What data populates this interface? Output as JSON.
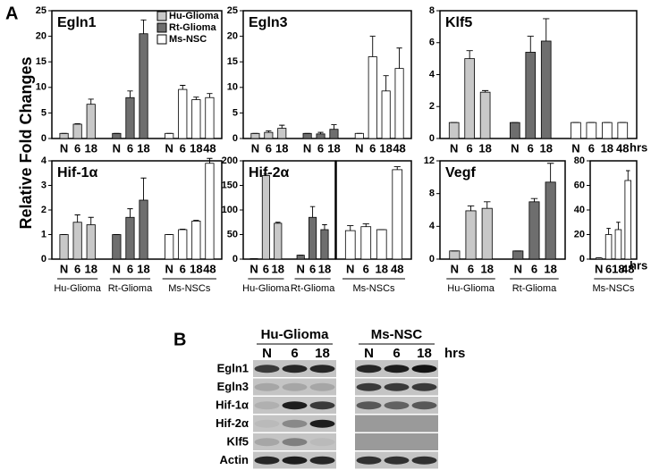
{
  "panel_a_label": "A",
  "y_axis_label": "Relative Fold Changes",
  "x_unit": "hrs",
  "chart_data": [
    {
      "type": "bar",
      "title": "Egln1",
      "ylim": [
        0,
        25
      ],
      "yticks": [
        0,
        5,
        10,
        15,
        20,
        25
      ],
      "legend": [
        {
          "name": "Hu-Glioma",
          "color": "#c8c8c8"
        },
        {
          "name": "Rt-Glioma",
          "color": "#6e6e6e"
        },
        {
          "name": "Ms-NSC",
          "color": "#ffffff"
        }
      ],
      "series": [
        {
          "color": "#c8c8c8",
          "categories": [
            "N",
            "6",
            "18"
          ],
          "values": [
            1,
            2.8,
            6.7
          ],
          "errors": [
            0,
            0.1,
            1
          ]
        },
        {
          "color": "#6e6e6e",
          "categories": [
            "N",
            "6",
            "18"
          ],
          "values": [
            1,
            8,
            20.5
          ],
          "errors": [
            0,
            1.3,
            2.7
          ]
        },
        {
          "color": "#ffffff",
          "categories": [
            "N",
            "6",
            "18",
            "48"
          ],
          "values": [
            1,
            9.6,
            7.6,
            8
          ],
          "errors": [
            0,
            0.8,
            0.5,
            0.8
          ]
        }
      ]
    },
    {
      "type": "bar",
      "title": "Egln3",
      "ylim": [
        0,
        25
      ],
      "yticks": [
        0,
        5,
        10,
        15,
        20,
        25
      ],
      "series": [
        {
          "color": "#c8c8c8",
          "categories": [
            "N",
            "6",
            "18"
          ],
          "values": [
            1,
            1.2,
            2
          ],
          "errors": [
            0,
            0.3,
            0.6
          ]
        },
        {
          "color": "#6e6e6e",
          "categories": [
            "N",
            "6",
            "18"
          ],
          "values": [
            1,
            0.9,
            1.8
          ],
          "errors": [
            0,
            0.3,
            0.9
          ]
        },
        {
          "color": "#ffffff",
          "categories": [
            "N",
            "6",
            "18",
            "48"
          ],
          "values": [
            1,
            16,
            9.3,
            13.7
          ],
          "errors": [
            0,
            4,
            3,
            4
          ]
        }
      ]
    },
    {
      "type": "bar",
      "title": "Klf5",
      "ylim": [
        0,
        8
      ],
      "yticks": [
        0,
        2,
        4,
        6,
        8
      ],
      "series": [
        {
          "color": "#c8c8c8",
          "categories": [
            "N",
            "6",
            "18"
          ],
          "values": [
            1,
            5,
            2.9
          ],
          "errors": [
            0,
            0.5,
            0.1
          ]
        },
        {
          "color": "#6e6e6e",
          "categories": [
            "N",
            "6",
            "18"
          ],
          "values": [
            1,
            5.4,
            6.1
          ],
          "errors": [
            0,
            1,
            1.4
          ]
        },
        {
          "color": "#ffffff",
          "categories": [
            "N",
            "6",
            "18",
            "48"
          ],
          "values": [
            1,
            1,
            1,
            1
          ],
          "errors": [
            0,
            0,
            0,
            0
          ]
        }
      ]
    },
    {
      "type": "bar",
      "title": "Hif-1α",
      "ylim": [
        0,
        4
      ],
      "yticks": [
        0,
        1,
        2,
        3,
        4
      ],
      "series": [
        {
          "name": "Hu-Glioma",
          "color": "#c8c8c8",
          "categories": [
            "N",
            "6",
            "18"
          ],
          "values": [
            1,
            1.5,
            1.4
          ],
          "errors": [
            0,
            0.3,
            0.3
          ]
        },
        {
          "name": "Rt-Glioma",
          "color": "#6e6e6e",
          "categories": [
            "N",
            "6",
            "18"
          ],
          "values": [
            1,
            1.7,
            2.4
          ],
          "errors": [
            0,
            0.35,
            0.9
          ]
        },
        {
          "name": "Ms-NSCs",
          "color": "#ffffff",
          "categories": [
            "N",
            "6",
            "18",
            "48"
          ],
          "values": [
            1,
            1.2,
            1.55,
            3.9
          ],
          "errors": [
            0,
            0.02,
            0.03,
            0.2
          ]
        }
      ]
    },
    {
      "type": "bar",
      "title": "Hif-2α",
      "ylim": [
        0,
        200
      ],
      "yticks": [
        0,
        50,
        100,
        150,
        200
      ],
      "series": [
        {
          "name": "Hu-Glioma",
          "color": "#c8c8c8",
          "categories": [
            "N",
            "6",
            "18"
          ],
          "values": [
            1,
            170,
            73
          ],
          "errors": [
            0,
            3,
            2
          ]
        },
        {
          "name": "Rt-Glioma",
          "color": "#6e6e6e",
          "categories": [
            "N",
            "6",
            "18"
          ],
          "values": [
            8,
            85,
            60
          ],
          "errors": [
            0,
            22,
            10
          ]
        }
      ]
    },
    {
      "type": "bar",
      "ylim": [
        0,
        5
      ],
      "series": [
        {
          "name": "Ms-NSCs",
          "color": "#ffffff",
          "categories": [
            "N",
            "6",
            "18",
            "48"
          ],
          "values": [
            1.45,
            1.65,
            1.5,
            4.55
          ],
          "errors": [
            0.25,
            0.15,
            0,
            0.15
          ]
        }
      ]
    },
    {
      "type": "bar",
      "title": "Vegf",
      "ylim": [
        0,
        12
      ],
      "yticks": [
        0,
        4,
        8,
        12
      ],
      "series": [
        {
          "name": "Hu-Glioma",
          "color": "#c8c8c8",
          "categories": [
            "N",
            "6",
            "18"
          ],
          "values": [
            1,
            5.9,
            6.2
          ],
          "errors": [
            0,
            0.6,
            0.8
          ]
        },
        {
          "name": "Rt-Glioma",
          "color": "#6e6e6e",
          "categories": [
            "N",
            "6",
            "18"
          ],
          "values": [
            1,
            7,
            9.4
          ],
          "errors": [
            0,
            0.4,
            2.3
          ]
        }
      ]
    },
    {
      "type": "bar",
      "ylim": [
        0,
        80
      ],
      "yticks": [
        0,
        20,
        40,
        60,
        80
      ],
      "series": [
        {
          "name": "Ms-NSCs",
          "color": "#ffffff",
          "categories": [
            "N",
            "6",
            "18",
            "48"
          ],
          "values": [
            1,
            20,
            24,
            64
          ],
          "errors": [
            0,
            5,
            6,
            8
          ]
        }
      ]
    }
  ],
  "panel_b": {
    "label": "B",
    "x_unit": "hrs",
    "groups": [
      {
        "name": "Hu-Glioma",
        "lanes": [
          "N",
          "6",
          "18"
        ]
      },
      {
        "name": "Ms-NSC",
        "lanes": [
          "N",
          "6",
          "18"
        ]
      }
    ],
    "rows": [
      "Egln1",
      "Egln3",
      "Hif-1α",
      "Hif-2α",
      "Klf5",
      "Actin"
    ]
  }
}
